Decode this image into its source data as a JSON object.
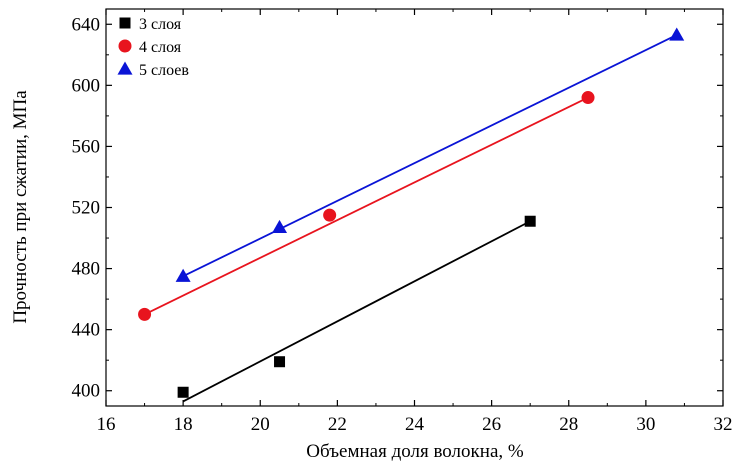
{
  "chart_data": {
    "type": "scatter",
    "title": "",
    "xlabel": "Объемная доля волокна, %",
    "ylabel": "Прочность при сжатии, МПа",
    "xlim": [
      16,
      32
    ],
    "ylim": [
      390,
      650
    ],
    "xticks": [
      16,
      18,
      20,
      22,
      24,
      26,
      28,
      30,
      32
    ],
    "yticks": [
      400,
      440,
      480,
      520,
      560,
      600,
      640
    ],
    "grid": false,
    "legend_position": "top-left",
    "series": [
      {
        "name": "3 слоя",
        "marker": "square",
        "color": "#000000",
        "line_color": "#000000",
        "x": [
          18,
          20.5,
          27
        ],
        "y": [
          399,
          419,
          511
        ],
        "fit_line": {
          "x": [
            18,
            27
          ],
          "y": [
            393,
            511
          ]
        }
      },
      {
        "name": "4 слоя",
        "marker": "circle",
        "color": "#e8141e",
        "line_color": "#e8141e",
        "x": [
          17,
          21.8,
          28.5
        ],
        "y": [
          450,
          515,
          592
        ],
        "fit_line": {
          "x": [
            17,
            28.5
          ],
          "y": [
            450,
            592
          ]
        }
      },
      {
        "name": "5 слоев",
        "marker": "triangle",
        "color": "#0a14d6",
        "line_color": "#0a14d6",
        "x": [
          18,
          20.5,
          30.8
        ],
        "y": [
          475,
          507,
          633
        ],
        "fit_line": {
          "x": [
            18,
            30.8
          ],
          "y": [
            475,
            633
          ]
        }
      }
    ]
  }
}
